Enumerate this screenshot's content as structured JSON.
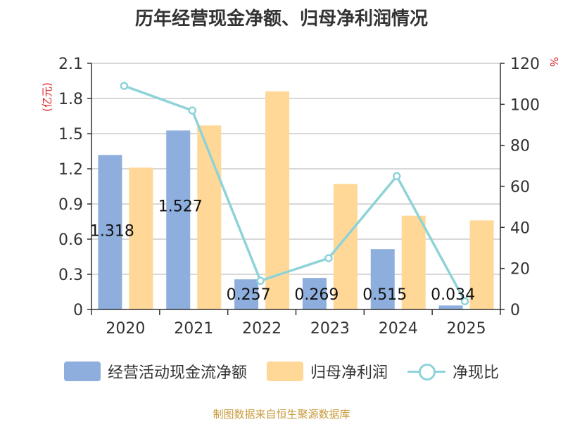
{
  "title": "历年经营现金净额、归母净利润情况",
  "source": "制图数据来自恒生聚源数据库",
  "colors": {
    "bar1": "#8eaedd",
    "bar2": "#ffd897",
    "line": "#8ed3d8",
    "grid": "#cccccc",
    "axis": "#333333",
    "unit": "#e02020"
  },
  "chart_data": {
    "type": "bar",
    "categories": [
      "2020",
      "2021",
      "2022",
      "2023",
      "2024",
      "2025"
    ],
    "left_axis": {
      "unit": "(亿元)",
      "ylim": [
        0,
        2.1
      ],
      "ticks": [
        "0",
        "0.3",
        "0.6",
        "0.9",
        "1.2",
        "1.5",
        "1.8",
        "2.1"
      ]
    },
    "right_axis": {
      "unit": "%",
      "ylim": [
        0,
        120
      ],
      "ticks": [
        "0",
        "20",
        "40",
        "60",
        "80",
        "100",
        "120"
      ]
    },
    "series": [
      {
        "name": "经营活动现金流净额",
        "type": "bar",
        "axis": "left",
        "values": [
          1.318,
          1.527,
          0.257,
          0.269,
          0.515,
          0.034
        ],
        "labels": [
          "1.318",
          "1.527",
          "0.257",
          "0.269",
          "0.515",
          "0.034"
        ]
      },
      {
        "name": "归母净利润",
        "type": "bar",
        "axis": "left",
        "values": [
          1.21,
          1.57,
          1.86,
          1.07,
          0.8,
          0.76
        ]
      },
      {
        "name": "净现比",
        "type": "line",
        "axis": "right",
        "values": [
          109,
          97,
          14,
          25,
          65,
          4
        ]
      }
    ],
    "legend_position": "bottom",
    "grid": true
  }
}
